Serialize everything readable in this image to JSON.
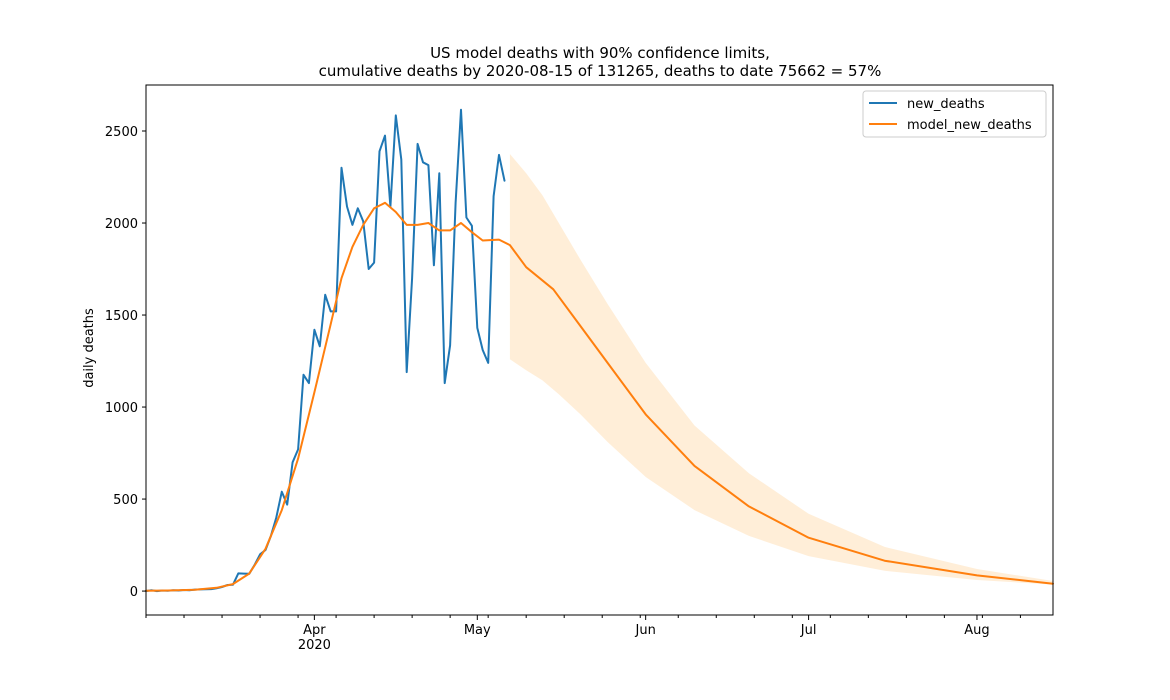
{
  "chart_data": {
    "type": "line",
    "title_line1": "US model deaths with 90% confidence limits,",
    "title_line2": "cumulative deaths by 2020-08-15 of 131265, deaths to date 75662 = 57%",
    "xlabel": "",
    "ylabel": "daily deaths",
    "x_axis_type": "date",
    "xlim": [
      "2020-03-01",
      "2020-08-15"
    ],
    "ylim": [
      -130,
      2750
    ],
    "yticks": [
      0,
      500,
      1000,
      1500,
      2000,
      2500
    ],
    "xticks": [
      {
        "date": "2020-04-01",
        "label": "Apr",
        "sublabel": "2020"
      },
      {
        "date": "2020-05-01",
        "label": "May",
        "sublabel": ""
      },
      {
        "date": "2020-06-01",
        "label": "Jun",
        "sublabel": ""
      },
      {
        "date": "2020-07-01",
        "label": "Jul",
        "sublabel": ""
      },
      {
        "date": "2020-08-01",
        "label": "Aug",
        "sublabel": ""
      }
    ],
    "grid": false,
    "legend_position": "top-right",
    "series": [
      {
        "name": "new_deaths",
        "color": "#1f77b4",
        "points": [
          [
            "2020-03-01",
            0
          ],
          [
            "2020-03-02",
            5
          ],
          [
            "2020-03-03",
            0
          ],
          [
            "2020-03-04",
            3
          ],
          [
            "2020-03-05",
            2
          ],
          [
            "2020-03-06",
            4
          ],
          [
            "2020-03-07",
            3
          ],
          [
            "2020-03-08",
            6
          ],
          [
            "2020-03-09",
            4
          ],
          [
            "2020-03-10",
            8
          ],
          [
            "2020-03-11",
            9
          ],
          [
            "2020-03-12",
            10
          ],
          [
            "2020-03-13",
            11
          ],
          [
            "2020-03-14",
            15
          ],
          [
            "2020-03-15",
            22
          ],
          [
            "2020-03-16",
            33
          ],
          [
            "2020-03-17",
            34
          ],
          [
            "2020-03-18",
            96
          ],
          [
            "2020-03-19",
            95
          ],
          [
            "2020-03-20",
            94
          ],
          [
            "2020-03-21",
            142
          ],
          [
            "2020-03-22",
            200
          ],
          [
            "2020-03-23",
            223
          ],
          [
            "2020-03-24",
            300
          ],
          [
            "2020-03-25",
            400
          ],
          [
            "2020-03-26",
            540
          ],
          [
            "2020-03-27",
            470
          ],
          [
            "2020-03-28",
            700
          ],
          [
            "2020-03-29",
            770
          ],
          [
            "2020-03-30",
            1175
          ],
          [
            "2020-03-31",
            1130
          ],
          [
            "2020-04-01",
            1420
          ],
          [
            "2020-04-02",
            1330
          ],
          [
            "2020-04-03",
            1610
          ],
          [
            "2020-04-04",
            1520
          ],
          [
            "2020-04-05",
            1520
          ],
          [
            "2020-04-06",
            2300
          ],
          [
            "2020-04-07",
            2090
          ],
          [
            "2020-04-08",
            1990
          ],
          [
            "2020-04-09",
            2080
          ],
          [
            "2020-04-10",
            2010
          ],
          [
            "2020-04-11",
            1750
          ],
          [
            "2020-04-12",
            1785
          ],
          [
            "2020-04-13",
            2390
          ],
          [
            "2020-04-14",
            2475
          ],
          [
            "2020-04-15",
            2090
          ],
          [
            "2020-04-16",
            2585
          ],
          [
            "2020-04-17",
            2345
          ],
          [
            "2020-04-18",
            1190
          ],
          [
            "2020-04-19",
            1700
          ],
          [
            "2020-04-20",
            2430
          ],
          [
            "2020-04-21",
            2330
          ],
          [
            "2020-04-22",
            2315
          ],
          [
            "2020-04-23",
            1770
          ],
          [
            "2020-04-24",
            2270
          ],
          [
            "2020-04-25",
            1130
          ],
          [
            "2020-04-26",
            1335
          ],
          [
            "2020-04-27",
            2110
          ],
          [
            "2020-04-28",
            2615
          ],
          [
            "2020-04-29",
            2030
          ],
          [
            "2020-04-30",
            1985
          ],
          [
            "2020-05-01",
            1430
          ],
          [
            "2020-05-02",
            1310
          ],
          [
            "2020-05-03",
            1240
          ],
          [
            "2020-05-04",
            2145
          ],
          [
            "2020-05-05",
            2370
          ],
          [
            "2020-05-06",
            2230
          ]
        ]
      },
      {
        "name": "model_new_deaths",
        "color": "#ff7f0e",
        "points": [
          [
            "2020-03-01",
            2
          ],
          [
            "2020-03-05",
            3
          ],
          [
            "2020-03-10",
            7
          ],
          [
            "2020-03-14",
            18
          ],
          [
            "2020-03-17",
            38
          ],
          [
            "2020-03-20",
            95
          ],
          [
            "2020-03-23",
            230
          ],
          [
            "2020-03-26",
            440
          ],
          [
            "2020-03-29",
            720
          ],
          [
            "2020-04-01",
            1080
          ],
          [
            "2020-04-04",
            1450
          ],
          [
            "2020-04-06",
            1700
          ],
          [
            "2020-04-08",
            1870
          ],
          [
            "2020-04-10",
            1990
          ],
          [
            "2020-04-12",
            2080
          ],
          [
            "2020-04-14",
            2110
          ],
          [
            "2020-04-16",
            2060
          ],
          [
            "2020-04-18",
            1990
          ],
          [
            "2020-04-20",
            1990
          ],
          [
            "2020-04-22",
            2000
          ],
          [
            "2020-04-24",
            1960
          ],
          [
            "2020-04-26",
            1960
          ],
          [
            "2020-04-28",
            2000
          ],
          [
            "2020-04-30",
            1950
          ],
          [
            "2020-05-02",
            1905
          ],
          [
            "2020-05-05",
            1910
          ],
          [
            "2020-05-07",
            1880
          ],
          [
            "2020-05-10",
            1760
          ],
          [
            "2020-05-15",
            1640
          ],
          [
            "2020-05-20",
            1440
          ],
          [
            "2020-05-25",
            1240
          ],
          [
            "2020-06-01",
            960
          ],
          [
            "2020-06-10",
            680
          ],
          [
            "2020-06-20",
            460
          ],
          [
            "2020-07-01",
            290
          ],
          [
            "2020-07-15",
            165
          ],
          [
            "2020-08-01",
            85
          ],
          [
            "2020-08-15",
            40
          ]
        ]
      }
    ],
    "confidence_band": {
      "color": "#ffd9a8",
      "points": [
        [
          "2020-05-07",
          1260,
          2375
        ],
        [
          "2020-05-10",
          1200,
          2270
        ],
        [
          "2020-05-13",
          1145,
          2150
        ],
        [
          "2020-05-16",
          1070,
          2000
        ],
        [
          "2020-05-20",
          960,
          1800
        ],
        [
          "2020-05-25",
          810,
          1560
        ],
        [
          "2020-06-01",
          620,
          1240
        ],
        [
          "2020-06-10",
          440,
          900
        ],
        [
          "2020-06-20",
          300,
          640
        ],
        [
          "2020-07-01",
          190,
          420
        ],
        [
          "2020-07-15",
          110,
          240
        ],
        [
          "2020-08-01",
          60,
          120
        ],
        [
          "2020-08-15",
          35,
          55
        ]
      ]
    },
    "legend": [
      {
        "label": "new_deaths",
        "color": "#1f77b4"
      },
      {
        "label": "model_new_deaths",
        "color": "#ff7f0e"
      }
    ]
  }
}
